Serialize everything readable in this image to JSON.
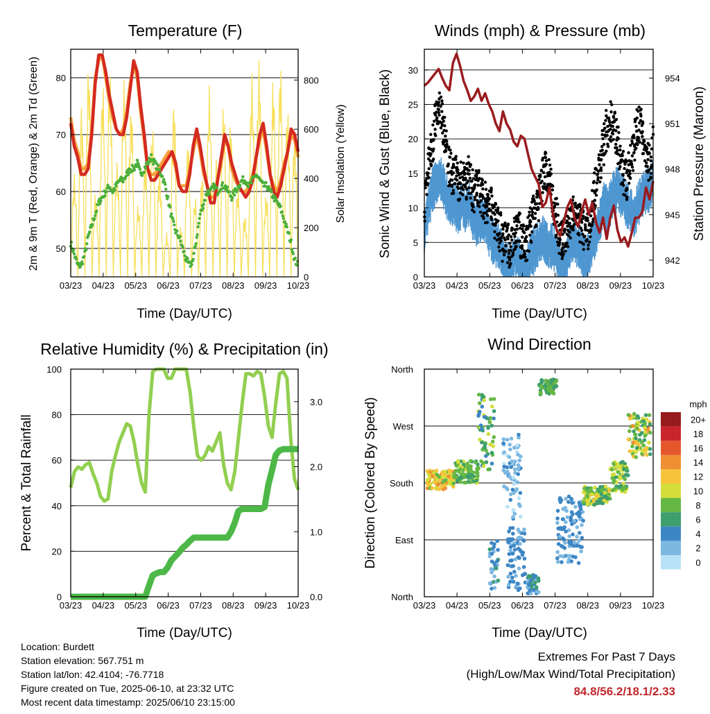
{
  "panels": {
    "temperature": {
      "title": "Temperature (F)",
      "xlabel": "Time (Day/UTC)",
      "ylabel_left": "2m & 9m T (Red, Orange) & 2m Td (Green)",
      "ylabel_right": "Solar Insolation (Yellow)"
    },
    "winds": {
      "title": "Winds (mph) & Pressure (mb)",
      "xlabel": "Time (Day/UTC)",
      "ylabel_left": "Sonic Wind & Gust (Blue, Black)",
      "ylabel_right": "Station Pressure (Maroon)"
    },
    "humidity": {
      "title": "Relative Humidity (%) & Precipitation (in)",
      "xlabel": "Time (Day/UTC)",
      "ylabel_left": "Percent & Total Rainfall"
    },
    "direction": {
      "title": "Wind Direction",
      "xlabel": "Time (Day/UTC)",
      "ylabel_left": "Direction (Colored By Speed)",
      "legend_title": "mph"
    }
  },
  "footer": {
    "location": "Location: Burdett",
    "elevation": "Station elevation: 567.751 m",
    "latlon": "Station lat/lon: 42.4104; -76.7718",
    "created": "Figure created on Tue, 2025-06-10, at 23:32 UTC",
    "recent": "Most recent data timestamp: 2025/06/10 23:15:00",
    "extremes_title": "Extremes For Past 7 Days",
    "extremes_sub": "(High/Low/Max Wind/Total Precipitation)",
    "extremes_values": "84.8/56.2/18.1/2.33"
  },
  "chart_data": [
    {
      "type": "line",
      "id": "temperature",
      "x_tick_labels": [
        "03/23",
        "04/23",
        "05/23",
        "06/23",
        "07/23",
        "08/23",
        "09/23",
        "10/23"
      ],
      "y_left": {
        "ylim": [
          45,
          85
        ],
        "ticks": [
          50,
          60,
          70,
          80
        ]
      },
      "y_right": {
        "ylim": [
          0,
          925
        ],
        "ticks": [
          0,
          200,
          400,
          600,
          800
        ]
      },
      "colors": {
        "t2m": "#d42a20",
        "t9m": "#f6a03c",
        "td": "#4caf3a",
        "solar": "#f7df59"
      },
      "series": [
        {
          "key": "t2m",
          "axis": "left",
          "values": [
            72,
            68,
            66,
            63,
            63,
            64,
            70,
            79,
            84,
            84,
            81,
            77,
            74,
            71,
            70,
            70,
            73,
            78,
            83,
            81,
            75,
            70,
            64,
            62,
            62,
            63,
            64,
            65,
            66,
            67,
            65,
            61,
            60,
            60,
            63,
            68,
            71,
            68,
            64,
            61,
            58,
            58,
            62,
            66,
            70,
            68,
            65,
            63,
            61,
            60,
            59,
            60,
            62,
            66,
            70,
            72,
            68,
            63,
            60,
            59,
            61,
            64,
            67,
            71,
            70,
            67
          ]
        },
        {
          "key": "t9m",
          "axis": "left",
          "values": [
            73,
            69,
            67,
            64,
            64,
            65,
            71,
            80,
            83,
            84,
            80,
            76,
            73,
            71,
            70,
            71,
            74,
            79,
            82,
            80,
            74,
            69,
            64,
            63,
            63,
            64,
            65,
            66,
            67,
            67,
            64,
            61,
            61,
            61,
            64,
            67,
            70,
            67,
            63,
            61,
            59,
            59,
            62,
            65,
            69,
            68,
            64,
            62,
            61,
            60,
            60,
            61,
            63,
            66,
            69,
            71,
            67,
            63,
            61,
            60,
            62,
            65,
            67,
            70,
            69,
            66
          ]
        },
        {
          "key": "td",
          "axis": "left",
          "values": [
            51,
            49,
            47,
            47,
            49,
            52,
            54,
            56,
            58,
            59,
            60,
            61,
            60,
            61,
            62,
            62,
            63,
            64,
            64,
            65,
            63,
            64,
            65,
            66,
            65,
            64,
            63,
            61,
            58,
            55,
            53,
            52,
            50,
            48,
            47,
            48,
            52,
            56,
            58,
            60,
            60,
            61,
            60,
            61,
            61,
            60,
            59,
            60,
            61,
            62,
            62,
            61,
            62,
            63,
            62,
            61,
            61,
            60,
            59,
            58,
            57,
            55,
            53,
            51,
            48,
            47
          ]
        },
        {
          "key": "solar",
          "axis": "right",
          "days": 32,
          "peaks": [
            420,
            710,
            880,
            350,
            800,
            870,
            480,
            810,
            720,
            300,
            500,
            620,
            450,
            180,
            740,
            210,
            560,
            330,
            430,
            780,
            500,
            720,
            640,
            380,
            260,
            840,
            900,
            350,
            820,
            880,
            700,
            600
          ]
        }
      ]
    },
    {
      "type": "line",
      "id": "winds",
      "x_tick_labels": [
        "03/23",
        "04/23",
        "05/23",
        "06/23",
        "07/23",
        "08/23",
        "09/23",
        "10/23"
      ],
      "y_left": {
        "ylim": [
          0,
          33
        ],
        "ticks": [
          0,
          5,
          10,
          15,
          20,
          25,
          30
        ]
      },
      "y_right": {
        "ylim": [
          940.9,
          955.9
        ],
        "ticks": [
          942,
          945,
          948,
          951,
          954
        ]
      },
      "colors": {
        "sustained": "#4f97d1",
        "gust": "#000000",
        "pressure": "#9a1b1e"
      },
      "series": [
        {
          "key": "sustained",
          "axis": "left",
          "values": [
            8,
            11,
            14,
            15,
            16,
            15,
            13,
            12,
            12,
            11,
            12,
            11,
            12,
            10,
            9,
            10,
            10,
            8,
            7,
            6,
            6,
            4,
            3,
            3,
            5,
            4,
            3,
            2,
            4,
            5,
            6,
            7,
            7,
            6,
            6,
            5,
            3,
            2,
            4,
            6,
            7,
            6,
            5,
            4,
            5,
            7,
            8,
            10,
            12,
            11,
            13,
            14,
            14,
            13,
            12,
            11,
            10,
            12,
            13,
            14,
            14,
            15
          ]
        },
        {
          "key": "gust",
          "axis": "left",
          "values": [
            11,
            16,
            19,
            23,
            25,
            22,
            18,
            15,
            15,
            14,
            14,
            14,
            15,
            12,
            13,
            12,
            11,
            10,
            10,
            8,
            7,
            5,
            5,
            4,
            6,
            7,
            5,
            4,
            7,
            9,
            10,
            13,
            16,
            15,
            12,
            9,
            6,
            5,
            7,
            8,
            9,
            8,
            7,
            6,
            7,
            11,
            14,
            17,
            20,
            22,
            23,
            21,
            18,
            15,
            14,
            17,
            19,
            23,
            21,
            18,
            16,
            20
          ]
        },
        {
          "key": "pressure",
          "axis": "right",
          "values": [
            953.5,
            953.7,
            954.0,
            954.3,
            954.6,
            954.0,
            953.5,
            953.2,
            955.0,
            955.6,
            954.8,
            953.8,
            953.2,
            952.5,
            952.8,
            953.3,
            952.5,
            953.0,
            952.3,
            951.8,
            951.0,
            950.5,
            951.8,
            951.0,
            950.6,
            949.8,
            949.5,
            950.2,
            950.0,
            949.0,
            948.0,
            947.5,
            947.0,
            945.5,
            945.8,
            946.8,
            945.0,
            944.0,
            943.6,
            944.5,
            945.5,
            946.0,
            944.8,
            944.2,
            945.2,
            946.0,
            945.0,
            945.8,
            944.5,
            943.8,
            944.8,
            943.4,
            944.8,
            945.6,
            944.0,
            943.2,
            943.5,
            942.9,
            943.8,
            944.8,
            944.8,
            945.2,
            946.8,
            946.0,
            947.2
          ]
        }
      ]
    },
    {
      "type": "line",
      "id": "humidity",
      "x_tick_labels": [
        "03/23",
        "04/23",
        "05/23",
        "06/23",
        "07/23",
        "08/23",
        "09/23",
        "10/23"
      ],
      "y_left": {
        "ylim": [
          0,
          100
        ],
        "ticks": [
          0,
          20,
          40,
          60,
          80,
          100
        ]
      },
      "y_right": {
        "ylim": [
          0,
          3.5
        ],
        "ticks": [
          "0.0",
          "1.0",
          "2.0",
          "3.0"
        ]
      },
      "colors": {
        "rh": "#92cf50",
        "precip": "#4db848"
      },
      "series": [
        {
          "key": "rh",
          "axis": "left",
          "values": [
            48,
            55,
            57,
            56,
            58,
            59,
            54,
            50,
            44,
            42,
            43,
            55,
            62,
            68,
            72,
            76,
            75,
            68,
            58,
            50,
            46,
            80,
            99,
            100,
            100,
            100,
            96,
            96,
            100,
            100,
            100,
            100,
            90,
            75,
            62,
            60,
            62,
            66,
            64,
            68,
            72,
            58,
            50,
            47,
            55,
            70,
            85,
            98,
            98,
            97,
            99,
            98,
            88,
            75,
            70,
            85,
            98,
            99,
            96,
            70,
            52,
            47
          ]
        },
        {
          "key": "precip",
          "axis": "right",
          "values": [
            0,
            0,
            0,
            0,
            0,
            0,
            0,
            0,
            0,
            0,
            0,
            0,
            0,
            0,
            0,
            0,
            0,
            0,
            0,
            0,
            0,
            0.17,
            0.33,
            0.36,
            0.38,
            0.38,
            0.45,
            0.56,
            0.62,
            0.68,
            0.75,
            0.8,
            0.86,
            0.91,
            0.91,
            0.91,
            0.91,
            0.91,
            0.91,
            0.91,
            0.91,
            0.91,
            0.91,
            1.0,
            1.14,
            1.32,
            1.35,
            1.35,
            1.35,
            1.35,
            1.35,
            1.35,
            1.38,
            1.72,
            1.95,
            2.18,
            2.25,
            2.27,
            2.27,
            2.27,
            2.27,
            2.27
          ]
        }
      ]
    },
    {
      "type": "scatter",
      "id": "direction",
      "x_tick_labels": [
        "03/23",
        "04/23",
        "05/23",
        "06/23",
        "07/23",
        "08/23",
        "09/23",
        "10/23"
      ],
      "y_tick_labels": [
        "North",
        "East",
        "South",
        "West",
        "North"
      ],
      "ylim": [
        0,
        360
      ],
      "legend": {
        "labels": [
          "0",
          "2",
          "4",
          "6",
          "8",
          "10",
          "12",
          "14",
          "16",
          "18",
          "20+"
        ],
        "colors": [
          "#b9e2f6",
          "#7db8e1",
          "#3d86c4",
          "#3d9e6e",
          "#66b845",
          "#d4dd3a",
          "#f6c33b",
          "#f08e33",
          "#e5562d",
          "#c8262a",
          "#961b1d"
        ]
      },
      "segments": [
        {
          "t": [
            0.0,
            0.12
          ],
          "dir": [
            170,
            200
          ],
          "speed": [
            8,
            14
          ]
        },
        {
          "t": [
            0.12,
            0.23
          ],
          "dir": [
            180,
            215
          ],
          "speed": [
            6,
            10
          ]
        },
        {
          "t": [
            0.23,
            0.3
          ],
          "dir": [
            200,
            320
          ],
          "speed": [
            3,
            10
          ]
        },
        {
          "t": [
            0.28,
            0.32
          ],
          "dir": [
            10,
            90
          ],
          "speed": [
            2,
            6
          ]
        },
        {
          "t": [
            0.34,
            0.42
          ],
          "dir": [
            120,
            260
          ],
          "speed": [
            0,
            4
          ]
        },
        {
          "t": [
            0.36,
            0.44
          ],
          "dir": [
            10,
            110
          ],
          "speed": [
            2,
            5
          ]
        },
        {
          "t": [
            0.45,
            0.5
          ],
          "dir": [
            5,
            35
          ],
          "speed": [
            2,
            7
          ]
        },
        {
          "t": [
            0.5,
            0.58
          ],
          "dir": [
            320,
            345
          ],
          "speed": [
            5,
            9
          ]
        },
        {
          "t": [
            0.58,
            0.7
          ],
          "dir": [
            50,
            160
          ],
          "speed": [
            2,
            5
          ]
        },
        {
          "t": [
            0.7,
            0.82
          ],
          "dir": [
            145,
            175
          ],
          "speed": [
            5,
            12
          ]
        },
        {
          "t": [
            0.82,
            0.9
          ],
          "dir": [
            165,
            215
          ],
          "speed": [
            6,
            11
          ]
        },
        {
          "t": [
            0.9,
            1.0
          ],
          "dir": [
            220,
            290
          ],
          "speed": [
            5,
            14
          ]
        }
      ]
    }
  ]
}
